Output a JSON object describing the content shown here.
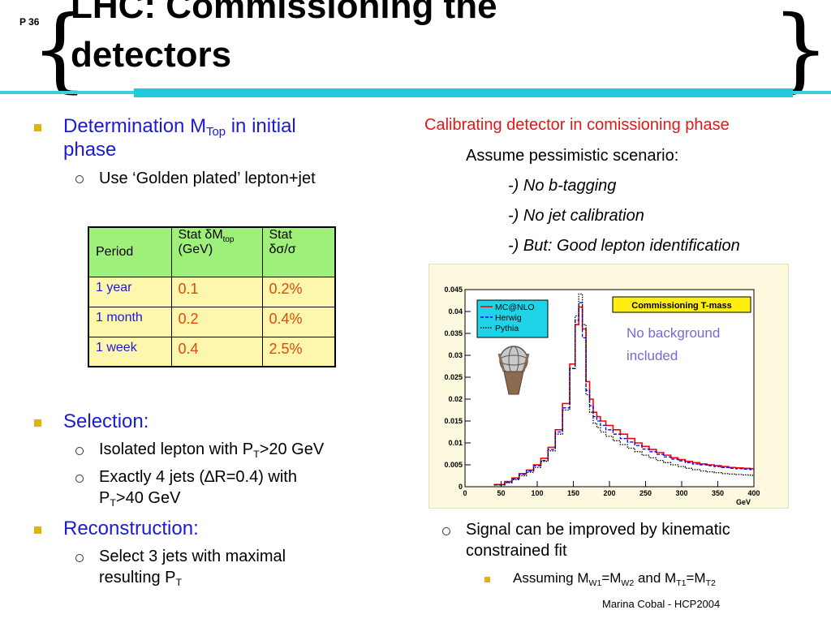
{
  "slide": {
    "number": "P 36",
    "title_line1": "LHC: Commissioning the",
    "title_line2": "detectors",
    "footer": "Marina Cobal - HCP2004"
  },
  "left": {
    "b1_pre": "Determination M",
    "b1_sub": "Top",
    "b1_post": " in initial",
    "b1_line2": "phase",
    "b1_s1": "Use ‘Golden plated’ lepton+jet",
    "b2": "Selection:",
    "b2_s1_pre": "Isolated lepton with P",
    "b2_s1_sub": "T",
    "b2_s1_post": ">20 GeV",
    "b2_s2_line1": "Exactly 4 jets (∆R=0.4) with",
    "b2_s2_pre": "P",
    "b2_s2_sub": "T",
    "b2_s2_post": ">40 GeV",
    "b3": "Reconstruction:",
    "b3_s1_line1": "Select 3 jets with maximal",
    "b3_s1_pre": "resulting P",
    "b3_s1_sub": "T"
  },
  "table": {
    "h_period": "Period",
    "h_stat1_pre": "Stat ",
    "h_stat1_delta": "δ",
    "h_stat1_m": "M",
    "h_stat1_sub": "top",
    "h_stat1_unit": "(GeV)",
    "h_stat2_line1": "Stat",
    "h_stat2_line2": "δσ/σ",
    "rows": [
      {
        "period": "1 year",
        "dm": "0.1",
        "sigma": "0.2%"
      },
      {
        "period": "1 month",
        "dm": "0.2",
        "sigma": "0.4%"
      },
      {
        "period": "1 week",
        "dm": "0.4",
        "sigma": "2.5%"
      }
    ]
  },
  "right": {
    "heading": "Calibrating detector in comissioning phase",
    "assume": "Assume pessimistic scenario:",
    "items": [
      "-) No b-tagging",
      "-) No jet calibration",
      "-) But: Good lepton identification"
    ],
    "signal_line1": "Signal can be improved by kinematic",
    "signal_line2": "constrained fit",
    "assuming_pre": "Assuming M",
    "assuming_sub1": "W1",
    "assuming_eq1": "=M",
    "assuming_sub2": "W2",
    "assuming_mid": " and M",
    "assuming_sub3": "T1",
    "assuming_eq2": "=M",
    "assuming_sub4": "T2"
  },
  "colors": {
    "accent_bar": "#22c8de",
    "bullet": "#e0b400",
    "text_blue": "#1b1bd6",
    "heading_red": "#e01818",
    "table_header": "#9ef07a",
    "table_cell": "#fdf6ad",
    "value_orange": "#e24a07"
  },
  "chart_data": {
    "type": "line",
    "title": "Commissioning T-mass",
    "annotation": [
      "No background",
      "included"
    ],
    "xlabel": "GeV",
    "ylabel": "",
    "xlim": [
      0,
      400
    ],
    "ylim": [
      0,
      0.045
    ],
    "x_ticks": [
      0,
      50,
      100,
      150,
      200,
      250,
      300,
      350,
      400
    ],
    "y_ticks": [
      "0",
      "0.005",
      "0.01",
      "0.015",
      "0.02",
      "0.025",
      "0.03",
      "0.035",
      "0.04",
      "0.045"
    ],
    "x": [
      50,
      60,
      70,
      80,
      90,
      100,
      110,
      120,
      130,
      140,
      150,
      155,
      160,
      165,
      170,
      175,
      180,
      185,
      190,
      200,
      210,
      220,
      230,
      240,
      250,
      260,
      270,
      280,
      290,
      300,
      310,
      320,
      330,
      340,
      350,
      360,
      370,
      380,
      390,
      400
    ],
    "series": [
      {
        "name": "MC@NLO",
        "color": "#ff0000",
        "style": "solid",
        "values": [
          0.0005,
          0.0012,
          0.002,
          0.003,
          0.0038,
          0.005,
          0.0065,
          0.009,
          0.013,
          0.019,
          0.028,
          0.037,
          0.041,
          0.036,
          0.024,
          0.02,
          0.017,
          0.016,
          0.015,
          0.014,
          0.013,
          0.012,
          0.011,
          0.01,
          0.0092,
          0.0085,
          0.0078,
          0.0072,
          0.0066,
          0.0062,
          0.0058,
          0.0055,
          0.0052,
          0.005,
          0.0048,
          0.0046,
          0.0044,
          0.0043,
          0.0042,
          0.0041
        ]
      },
      {
        "name": "Herwig",
        "color": "#0000ff",
        "style": "dashed",
        "values": [
          0.0004,
          0.001,
          0.0018,
          0.0028,
          0.0036,
          0.0048,
          0.006,
          0.0085,
          0.0125,
          0.018,
          0.027,
          0.038,
          0.042,
          0.034,
          0.022,
          0.0185,
          0.016,
          0.015,
          0.014,
          0.013,
          0.012,
          0.011,
          0.0102,
          0.0094,
          0.0086,
          0.008,
          0.0074,
          0.0068,
          0.0063,
          0.0059,
          0.0055,
          0.0052,
          0.005,
          0.0048,
          0.0046,
          0.0044,
          0.0042,
          0.0041,
          0.004,
          0.0039
        ]
      },
      {
        "name": "Pythia",
        "color": "#000000",
        "style": "dotted",
        "values": [
          0.0004,
          0.0009,
          0.0016,
          0.0025,
          0.0033,
          0.0044,
          0.0058,
          0.0082,
          0.012,
          0.0175,
          0.027,
          0.039,
          0.044,
          0.037,
          0.021,
          0.017,
          0.0145,
          0.0135,
          0.0125,
          0.0115,
          0.0105,
          0.0096,
          0.0088,
          0.008,
          0.0072,
          0.0066,
          0.006,
          0.0055,
          0.005,
          0.0046,
          0.0042,
          0.0039,
          0.0036,
          0.0034,
          0.0032,
          0.003,
          0.0029,
          0.0028,
          0.0027,
          0.0026
        ]
      }
    ]
  }
}
